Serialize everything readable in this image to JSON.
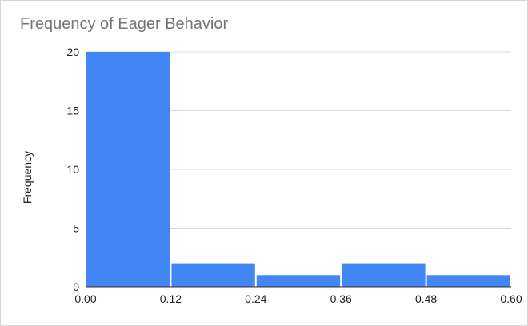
{
  "chart_data": {
    "type": "bar",
    "title": "Frequency of Eager Behavior",
    "xlabel": "",
    "ylabel": "Frequency",
    "bins": [
      {
        "start": 0.0,
        "end": 0.12,
        "count": 20
      },
      {
        "start": 0.12,
        "end": 0.24,
        "count": 2
      },
      {
        "start": 0.24,
        "end": 0.36,
        "count": 1
      },
      {
        "start": 0.36,
        "end": 0.48,
        "count": 2
      },
      {
        "start": 0.48,
        "end": 0.6,
        "count": 1
      }
    ],
    "xlim": [
      0,
      0.6
    ],
    "ylim": [
      0,
      20
    ],
    "x_ticks": [
      "0.00",
      "0.12",
      "0.24",
      "0.36",
      "0.48",
      "0.60"
    ],
    "y_ticks": [
      "0",
      "5",
      "10",
      "15",
      "20"
    ],
    "grid": true,
    "legend": "none",
    "bar_color": "#4285F4"
  }
}
